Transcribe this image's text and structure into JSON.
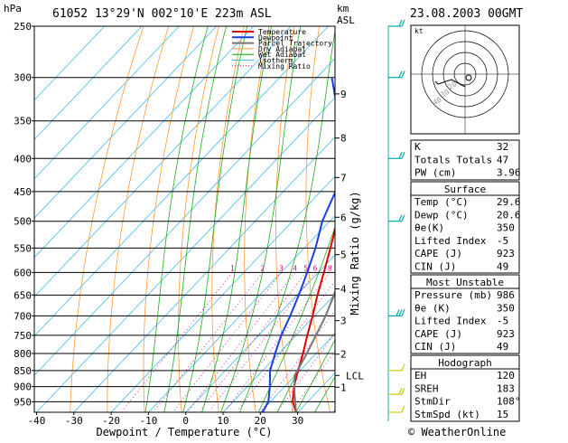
{
  "header": {
    "station": "61052  13°29'N  002°10'E  223m  ASL",
    "datetime": "23.08.2003  00GMT",
    "p_unit": "hPa",
    "km_unit": "km",
    "asl": "ASL"
  },
  "footer": {
    "credit": "© WeatherOnline"
  },
  "chart_data": {
    "type": "line",
    "xlabel": "Dewpoint / Temperature (°C)",
    "ylabel_right": "Mixing Ratio (g/kg)",
    "x_ticks": [
      "-40",
      "-30",
      "-20",
      "-10",
      "0",
      "10",
      "20",
      "30"
    ],
    "xlim": [
      -40,
      40
    ],
    "pressure_levels": [
      "250",
      "300",
      "350",
      "400",
      "450",
      "500",
      "550",
      "600",
      "650",
      "700",
      "750",
      "800",
      "850",
      "900",
      "950"
    ],
    "plim": [
      250,
      986
    ],
    "height_km": [
      {
        "label": "9",
        "p": 318
      },
      {
        "label": "8",
        "p": 372
      },
      {
        "label": "7",
        "p": 428
      },
      {
        "label": "6",
        "p": 493
      },
      {
        "label": "5",
        "p": 563
      },
      {
        "label": "4",
        "p": 636
      },
      {
        "label": "3",
        "p": 712
      },
      {
        "label": "2",
        "p": 802
      },
      {
        "label": "1",
        "p": 902
      }
    ],
    "lcl": {
      "label": "LCL",
      "p": 865
    },
    "mixing_ratio_labels": [
      "1",
      "2",
      "3",
      "4",
      "5",
      "6",
      "8",
      "10",
      "15",
      "20",
      "25"
    ],
    "mixing_ratio_values": [
      1,
      2,
      3,
      4,
      5,
      6,
      8,
      10,
      15,
      20,
      25
    ],
    "legend": [
      {
        "name": "Temperature",
        "color": "#dd0000"
      },
      {
        "name": "Dewpoint",
        "color": "#1a3fe0"
      },
      {
        "name": "Parcel Trajectory",
        "color": "#777777"
      },
      {
        "name": "Dry Adiabat",
        "color": "#ff9933"
      },
      {
        "name": "Wet Adiabat",
        "color": "#00aa00"
      },
      {
        "name": "Isotherm",
        "color": "#33bbee"
      },
      {
        "name": "Mixing Ratio",
        "color": "#dd0088"
      }
    ],
    "series": [
      {
        "name": "Temperature",
        "color": "#dd0000",
        "points": [
          {
            "p": 986,
            "t": 29.6
          },
          {
            "p": 950,
            "t": 26
          },
          {
            "p": 900,
            "t": 22.5
          },
          {
            "p": 850,
            "t": 19.5
          },
          {
            "p": 800,
            "t": 16.5
          },
          {
            "p": 750,
            "t": 13
          },
          {
            "p": 700,
            "t": 9.5
          },
          {
            "p": 650,
            "t": 5.5
          },
          {
            "p": 600,
            "t": 1.5
          },
          {
            "p": 550,
            "t": -3
          },
          {
            "p": 500,
            "t": -8
          },
          {
            "p": 450,
            "t": -13
          },
          {
            "p": 400,
            "t": -18.5
          },
          {
            "p": 350,
            "t": -26
          },
          {
            "p": 300,
            "t": -34
          },
          {
            "p": 250,
            "t": -42
          }
        ]
      },
      {
        "name": "Dewpoint",
        "color": "#1a3fe0",
        "points": [
          {
            "p": 986,
            "t": 20.6
          },
          {
            "p": 950,
            "t": 19.5
          },
          {
            "p": 900,
            "t": 16
          },
          {
            "p": 850,
            "t": 12
          },
          {
            "p": 800,
            "t": 9
          },
          {
            "p": 750,
            "t": 6
          },
          {
            "p": 700,
            "t": 3.5
          },
          {
            "p": 650,
            "t": 0.5
          },
          {
            "p": 600,
            "t": -3
          },
          {
            "p": 550,
            "t": -7
          },
          {
            "p": 500,
            "t": -12
          },
          {
            "p": 450,
            "t": -16
          },
          {
            "p": 400,
            "t": -21.5
          },
          {
            "p": 350,
            "t": -33
          },
          {
            "p": 300,
            "t": -46
          }
        ]
      },
      {
        "name": "Parcel Trajectory",
        "color": "#777777",
        "points": [
          {
            "p": 986,
            "t": 29.6
          },
          {
            "p": 920,
            "t": 24.2
          },
          {
            "p": 865,
            "t": 19.8
          },
          {
            "p": 800,
            "t": 17.5
          },
          {
            "p": 700,
            "t": 13
          },
          {
            "p": 600,
            "t": 6.5
          },
          {
            "p": 500,
            "t": -2
          },
          {
            "p": 450,
            "t": -7
          },
          {
            "p": 400,
            "t": -13
          },
          {
            "p": 350,
            "t": -20
          },
          {
            "p": 300,
            "t": -28
          },
          {
            "p": 250,
            "t": -37
          }
        ]
      }
    ]
  },
  "hodograph": {
    "unit_label": "kt",
    "ring_labels": [
      "20",
      "30",
      "40"
    ]
  },
  "wind_barbs": [
    {
      "p": 250,
      "speed": 15,
      "dir": 260
    },
    {
      "p": 300,
      "speed": 15,
      "dir": 250
    },
    {
      "p": 400,
      "speed": 15,
      "dir": 240
    },
    {
      "p": 500,
      "speed": 20,
      "dir": 80
    },
    {
      "p": 700,
      "speed": 25,
      "dir": 90
    },
    {
      "p": 850,
      "speed": 10,
      "dir": 200
    },
    {
      "p": 925,
      "speed": 15,
      "dir": 210
    },
    {
      "p": 986,
      "speed": 10,
      "dir": 220
    }
  ],
  "indices": {
    "basic": [
      {
        "label": "K",
        "value": "32"
      },
      {
        "label": "Totals Totals",
        "value": "47"
      },
      {
        "label": "PW (cm)",
        "value": "3.96"
      }
    ],
    "surface_title": "Surface",
    "surface": [
      {
        "label": "Temp (°C)",
        "value": "29.6"
      },
      {
        "label": "Dewp (°C)",
        "value": "20.6"
      },
      {
        "label": "θe(K)",
        "value": "350"
      },
      {
        "label": "Lifted Index",
        "value": "-5"
      },
      {
        "label": "CAPE (J)",
        "value": "923"
      },
      {
        "label": "CIN (J)",
        "value": "49"
      }
    ],
    "unstable_title": "Most Unstable",
    "unstable": [
      {
        "label": "Pressure (mb)",
        "value": "986"
      },
      {
        "label": "θe (K)",
        "value": "350"
      },
      {
        "label": "Lifted Index",
        "value": "-5"
      },
      {
        "label": "CAPE (J)",
        "value": "923"
      },
      {
        "label": "CIN (J)",
        "value": "49"
      }
    ],
    "hodo_title": "Hodograph",
    "hodo": [
      {
        "label": "EH",
        "value": "120"
      },
      {
        "label": "SREH",
        "value": "183"
      },
      {
        "label": "StmDir",
        "value": "108°"
      },
      {
        "label": "StmSpd (kt)",
        "value": "15"
      }
    ]
  }
}
